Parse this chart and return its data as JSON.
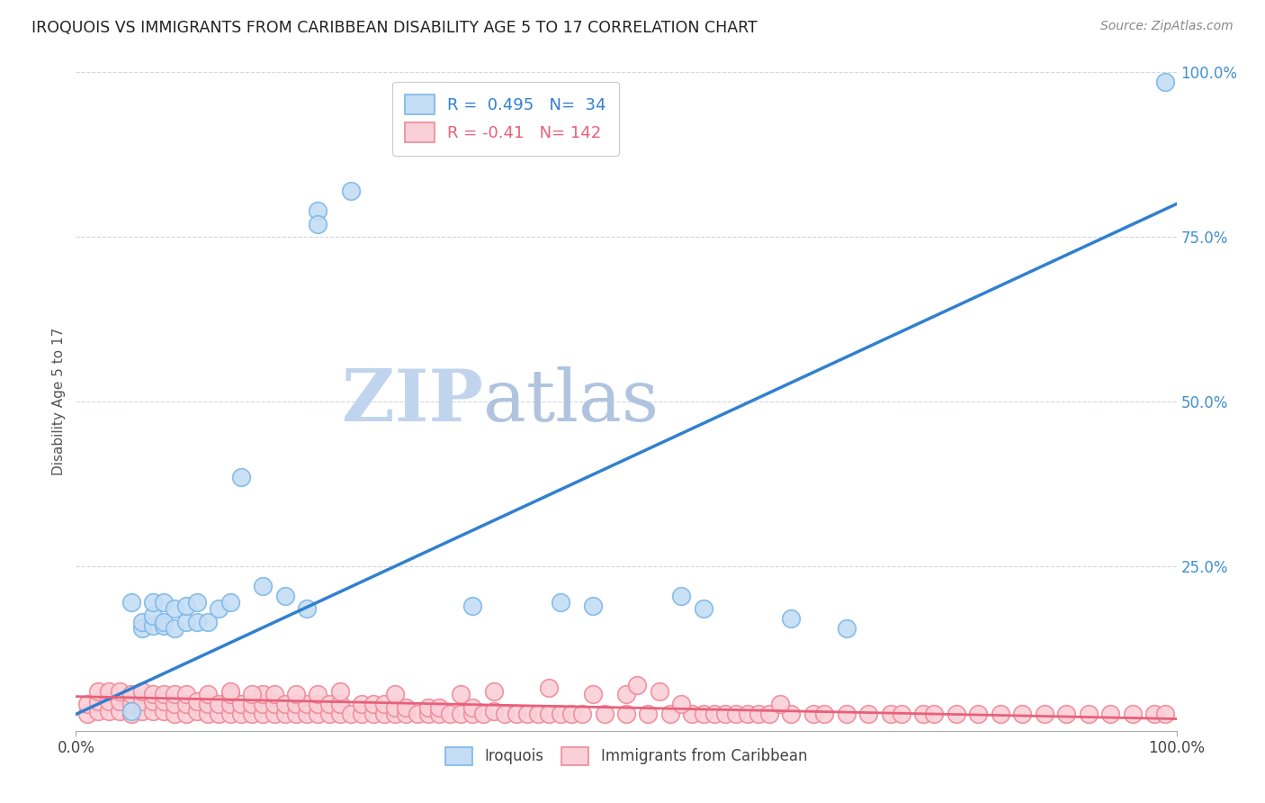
{
  "title": "IROQUOIS VS IMMIGRANTS FROM CARIBBEAN DISABILITY AGE 5 TO 17 CORRELATION CHART",
  "source_text": "Source: ZipAtlas.com",
  "ylabel": "Disability Age 5 to 17",
  "xlim": [
    0,
    1.0
  ],
  "ylim": [
    0,
    1.0
  ],
  "xtick_labels": [
    "0.0%",
    "100.0%"
  ],
  "ytick_labels": [
    "25.0%",
    "50.0%",
    "75.0%",
    "100.0%"
  ],
  "ytick_positions": [
    0.25,
    0.5,
    0.75,
    1.0
  ],
  "blue_R": 0.495,
  "blue_N": 34,
  "pink_R": -0.41,
  "pink_N": 142,
  "blue_color": "#7bb8e8",
  "blue_fill": "#c5ddf4",
  "pink_color": "#f08898",
  "pink_fill": "#fad0d8",
  "blue_line_color": "#3080d0",
  "pink_line_color": "#e8607a",
  "watermark_zip_color": "#c8d8f0",
  "watermark_atlas_color": "#b8c8e8",
  "background_color": "#ffffff",
  "blue_scatter_x": [
    0.05,
    0.05,
    0.06,
    0.06,
    0.07,
    0.07,
    0.07,
    0.08,
    0.08,
    0.08,
    0.09,
    0.09,
    0.1,
    0.1,
    0.11,
    0.11,
    0.12,
    0.13,
    0.14,
    0.15,
    0.17,
    0.19,
    0.21,
    0.36,
    0.44,
    0.47,
    0.55,
    0.57,
    0.65,
    0.7,
    0.25,
    0.22,
    0.22,
    0.99
  ],
  "blue_scatter_y": [
    0.03,
    0.195,
    0.155,
    0.165,
    0.16,
    0.175,
    0.195,
    0.16,
    0.165,
    0.195,
    0.155,
    0.185,
    0.165,
    0.19,
    0.165,
    0.195,
    0.165,
    0.185,
    0.195,
    0.385,
    0.22,
    0.205,
    0.185,
    0.19,
    0.195,
    0.19,
    0.205,
    0.185,
    0.17,
    0.155,
    0.82,
    0.79,
    0.77,
    0.985
  ],
  "pink_scatter_x": [
    0.01,
    0.01,
    0.02,
    0.02,
    0.02,
    0.03,
    0.03,
    0.03,
    0.04,
    0.04,
    0.04,
    0.05,
    0.05,
    0.05,
    0.06,
    0.06,
    0.06,
    0.07,
    0.07,
    0.07,
    0.08,
    0.08,
    0.08,
    0.09,
    0.09,
    0.09,
    0.1,
    0.1,
    0.1,
    0.11,
    0.11,
    0.12,
    0.12,
    0.12,
    0.13,
    0.13,
    0.14,
    0.14,
    0.14,
    0.15,
    0.15,
    0.16,
    0.16,
    0.17,
    0.17,
    0.17,
    0.18,
    0.18,
    0.18,
    0.19,
    0.19,
    0.2,
    0.2,
    0.21,
    0.21,
    0.22,
    0.22,
    0.22,
    0.23,
    0.23,
    0.24,
    0.24,
    0.25,
    0.26,
    0.26,
    0.27,
    0.27,
    0.28,
    0.28,
    0.29,
    0.29,
    0.3,
    0.3,
    0.31,
    0.32,
    0.32,
    0.33,
    0.33,
    0.34,
    0.35,
    0.36,
    0.36,
    0.37,
    0.38,
    0.39,
    0.4,
    0.41,
    0.42,
    0.43,
    0.44,
    0.45,
    0.46,
    0.48,
    0.5,
    0.52,
    0.54,
    0.56,
    0.57,
    0.58,
    0.59,
    0.6,
    0.61,
    0.62,
    0.63,
    0.65,
    0.67,
    0.68,
    0.7,
    0.72,
    0.74,
    0.75,
    0.77,
    0.78,
    0.8,
    0.82,
    0.84,
    0.86,
    0.88,
    0.9,
    0.92,
    0.94,
    0.96,
    0.98,
    0.99,
    0.5,
    0.55,
    0.51,
    0.53,
    0.64,
    0.47,
    0.43,
    0.38,
    0.35,
    0.14,
    0.16,
    0.2,
    0.24,
    0.29
  ],
  "pink_scatter_y": [
    0.025,
    0.04,
    0.03,
    0.045,
    0.06,
    0.03,
    0.045,
    0.06,
    0.03,
    0.045,
    0.06,
    0.025,
    0.04,
    0.055,
    0.03,
    0.045,
    0.06,
    0.03,
    0.045,
    0.055,
    0.03,
    0.045,
    0.055,
    0.025,
    0.04,
    0.055,
    0.025,
    0.04,
    0.055,
    0.03,
    0.045,
    0.025,
    0.04,
    0.055,
    0.025,
    0.04,
    0.025,
    0.04,
    0.055,
    0.025,
    0.04,
    0.025,
    0.04,
    0.025,
    0.04,
    0.055,
    0.025,
    0.04,
    0.055,
    0.025,
    0.04,
    0.025,
    0.04,
    0.025,
    0.04,
    0.025,
    0.04,
    0.055,
    0.025,
    0.04,
    0.025,
    0.04,
    0.025,
    0.025,
    0.04,
    0.025,
    0.04,
    0.025,
    0.04,
    0.025,
    0.035,
    0.025,
    0.035,
    0.025,
    0.025,
    0.035,
    0.025,
    0.035,
    0.025,
    0.025,
    0.025,
    0.035,
    0.025,
    0.03,
    0.025,
    0.025,
    0.025,
    0.025,
    0.025,
    0.025,
    0.025,
    0.025,
    0.025,
    0.025,
    0.025,
    0.025,
    0.025,
    0.025,
    0.025,
    0.025,
    0.025,
    0.025,
    0.025,
    0.025,
    0.025,
    0.025,
    0.025,
    0.025,
    0.025,
    0.025,
    0.025,
    0.025,
    0.025,
    0.025,
    0.025,
    0.025,
    0.025,
    0.025,
    0.025,
    0.025,
    0.025,
    0.025,
    0.025,
    0.025,
    0.055,
    0.04,
    0.07,
    0.06,
    0.04,
    0.055,
    0.065,
    0.06,
    0.055,
    0.06,
    0.055,
    0.055,
    0.06,
    0.055
  ],
  "blue_trend_x0": 0.0,
  "blue_trend_y0": 0.025,
  "blue_trend_x1": 1.0,
  "blue_trend_y1": 0.8,
  "pink_trend_x0": 0.0,
  "pink_trend_y0": 0.052,
  "pink_trend_x1": 1.0,
  "pink_trend_y1": 0.018
}
